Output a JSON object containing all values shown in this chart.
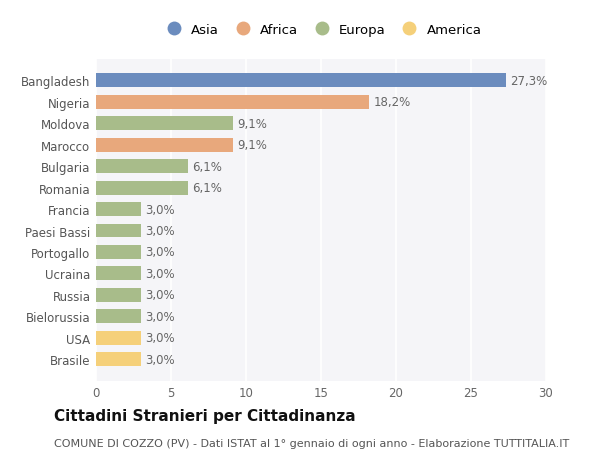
{
  "categories": [
    "Bangladesh",
    "Nigeria",
    "Moldova",
    "Marocco",
    "Bulgaria",
    "Romania",
    "Francia",
    "Paesi Bassi",
    "Portogallo",
    "Ucraina",
    "Russia",
    "Bielorussia",
    "USA",
    "Brasile"
  ],
  "values": [
    27.3,
    18.2,
    9.1,
    9.1,
    6.1,
    6.1,
    3.0,
    3.0,
    3.0,
    3.0,
    3.0,
    3.0,
    3.0,
    3.0
  ],
  "labels": [
    "27,3%",
    "18,2%",
    "9,1%",
    "9,1%",
    "6,1%",
    "6,1%",
    "3,0%",
    "3,0%",
    "3,0%",
    "3,0%",
    "3,0%",
    "3,0%",
    "3,0%",
    "3,0%"
  ],
  "continent": [
    "Asia",
    "Africa",
    "Europa",
    "Africa",
    "Europa",
    "Europa",
    "Europa",
    "Europa",
    "Europa",
    "Europa",
    "Europa",
    "Europa",
    "America",
    "America"
  ],
  "colors": {
    "Asia": "#6b8cbe",
    "Africa": "#e8a87c",
    "Europa": "#a8bc8a",
    "America": "#f5d07a"
  },
  "legend_order": [
    "Asia",
    "Africa",
    "Europa",
    "America"
  ],
  "xlim": [
    0,
    30
  ],
  "xticks": [
    0,
    5,
    10,
    15,
    20,
    25,
    30
  ],
  "title": "Cittadini Stranieri per Cittadinanza",
  "subtitle": "COMUNE DI COZZO (PV) - Dati ISTAT al 1° gennaio di ogni anno - Elaborazione TUTTITALIA.IT",
  "background_color": "#ffffff",
  "plot_bg_color": "#f5f5f8",
  "grid_color": "#ffffff",
  "bar_height": 0.65,
  "label_fontsize": 8.5,
  "tick_fontsize": 8.5,
  "title_fontsize": 11,
  "subtitle_fontsize": 8
}
